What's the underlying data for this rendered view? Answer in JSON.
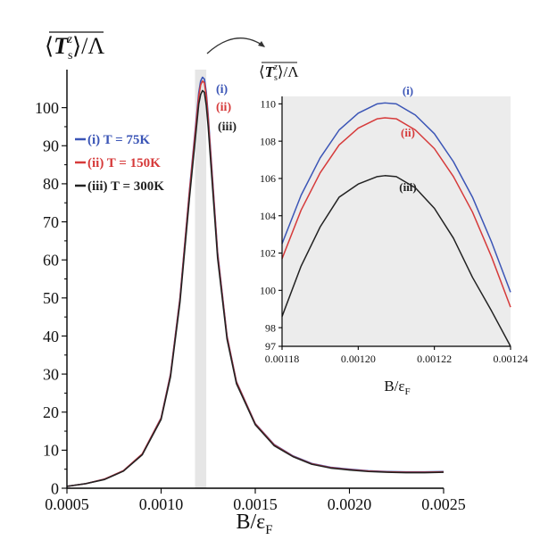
{
  "chart_data": [
    {
      "type": "line",
      "ylabel": "⟨T_s^z⟩/Λ",
      "ylabel_parts": {
        "open": "⟨",
        "T": "T",
        "sub": "s",
        "sup": "z",
        "close": "⟩",
        "tail": "/Λ"
      },
      "xlabel": "B/ε_F",
      "xlabel_parts": {
        "main": "B/ε",
        "sub": "F"
      },
      "xlim": [
        0.0005,
        0.0025
      ],
      "ylim": [
        0,
        110
      ],
      "xticks": [
        0.0005,
        0.001,
        0.0015,
        0.002,
        0.0025
      ],
      "xtick_labels": [
        "0.0005",
        "0.0010",
        "0.0015",
        "0.0020",
        "0.0025"
      ],
      "yticks": [
        0,
        10,
        20,
        30,
        40,
        50,
        60,
        70,
        80,
        90,
        100
      ],
      "ytick_labels": [
        "0",
        "10",
        "20",
        "30",
        "40",
        "50",
        "60",
        "70",
        "80",
        "90",
        "100"
      ],
      "highlight_band": [
        0.00118,
        0.00124
      ],
      "legend": {
        "placement": "upper-left"
      },
      "peak_labels": [
        "(i)",
        "(ii)",
        "(iii)"
      ],
      "series": [
        {
          "name": "(i) T = 75K",
          "color": "#3b55b6",
          "x": [
            0.0005,
            0.0006,
            0.0007,
            0.0008,
            0.0009,
            0.001,
            0.00105,
            0.0011,
            0.00115,
            0.0012,
            0.00121,
            0.00122,
            0.00123,
            0.00124,
            0.00125,
            0.0013,
            0.00135,
            0.0014,
            0.0015,
            0.0016,
            0.0017,
            0.0018,
            0.0019,
            0.002,
            0.0021,
            0.0022,
            0.0023,
            0.0024,
            0.0025
          ],
          "values": [
            0.5,
            1.2,
            2.4,
            4.6,
            9,
            18.5,
            30,
            50,
            78,
            104,
            107,
            108,
            107.5,
            104,
            98,
            62,
            40,
            28,
            17,
            11.5,
            8.5,
            6.5,
            5.5,
            5,
            4.6,
            4.4,
            4.3,
            4.3,
            4.4
          ]
        },
        {
          "name": "(ii) T = 150K",
          "color": "#d63a3a",
          "x": [
            0.0005,
            0.0006,
            0.0007,
            0.0008,
            0.0009,
            0.001,
            0.00105,
            0.0011,
            0.00115,
            0.0012,
            0.00121,
            0.00122,
            0.00123,
            0.00124,
            0.00125,
            0.0013,
            0.00135,
            0.0014,
            0.0015,
            0.0016,
            0.0017,
            0.0018,
            0.0019,
            0.002,
            0.0021,
            0.0022,
            0.0023,
            0.0024,
            0.0025
          ],
          "values": [
            0.5,
            1.2,
            2.4,
            4.6,
            9,
            18.4,
            29.8,
            49.6,
            77.5,
            103,
            106,
            107,
            106.5,
            103,
            97,
            61.5,
            39.8,
            27.9,
            16.9,
            11.4,
            8.4,
            6.4,
            5.4,
            4.9,
            4.5,
            4.3,
            4.2,
            4.2,
            4.3
          ]
        },
        {
          "name": "(iii) T = 300K",
          "color": "#222222",
          "x": [
            0.0005,
            0.0006,
            0.0007,
            0.0008,
            0.0009,
            0.001,
            0.00105,
            0.0011,
            0.00115,
            0.0012,
            0.00121,
            0.00122,
            0.00123,
            0.00124,
            0.00125,
            0.0013,
            0.00135,
            0.0014,
            0.0015,
            0.0016,
            0.0017,
            0.0018,
            0.0019,
            0.002,
            0.0021,
            0.0022,
            0.0023,
            0.0024,
            0.0025
          ],
          "values": [
            0.5,
            1.2,
            2.3,
            4.5,
            8.8,
            18.1,
            29.3,
            48.8,
            76,
            101,
            103.5,
            104.5,
            104,
            100.5,
            95,
            60.5,
            39.2,
            27.5,
            16.7,
            11.2,
            8.3,
            6.3,
            5.3,
            4.8,
            4.4,
            4.2,
            4.1,
            4.1,
            4.2
          ]
        }
      ]
    },
    {
      "type": "line",
      "ylabel": "⟨T_s^z⟩/Λ",
      "ylabel_parts": {
        "open": "⟨",
        "T": "T",
        "sub": "s",
        "sup": "z",
        "close": "⟩",
        "tail": "/Λ"
      },
      "xlabel": "B/ε_F",
      "xlabel_parts": {
        "main": "B/ε",
        "sub": "F"
      },
      "xlim": [
        0.00118,
        0.00124
      ],
      "ylim": [
        97,
        110.4
      ],
      "xticks": [
        0.00118,
        0.0012,
        0.00122,
        0.00124
      ],
      "xtick_labels": [
        "0.00118",
        "0.00120",
        "0.00122",
        "0.00124"
      ],
      "yticks": [
        97,
        98,
        100,
        102,
        104,
        106,
        108,
        110
      ],
      "ytick_labels": [
        "97",
        "98",
        "100",
        "102",
        "104",
        "106",
        "108",
        "110"
      ],
      "curve_labels": [
        "(i)",
        "(ii)",
        "(iii)"
      ],
      "series": [
        {
          "name": "(i)",
          "color": "#3b55b6",
          "x": [
            0.00118,
            0.001185,
            0.00119,
            0.001195,
            0.0012,
            0.001205,
            0.001207,
            0.00121,
            0.001215,
            0.00122,
            0.001225,
            0.00123,
            0.001235,
            0.00124
          ],
          "values": [
            102.5,
            105.1,
            107.1,
            108.6,
            109.5,
            110,
            110.05,
            110,
            109.4,
            108.4,
            106.9,
            105,
            102.6,
            99.9
          ]
        },
        {
          "name": "(ii)",
          "color": "#d63a3a",
          "x": [
            0.00118,
            0.001185,
            0.00119,
            0.001195,
            0.0012,
            0.001205,
            0.001207,
            0.00121,
            0.001215,
            0.00122,
            0.001225,
            0.00123,
            0.001235,
            0.00124
          ],
          "values": [
            101.7,
            104.3,
            106.3,
            107.8,
            108.7,
            109.2,
            109.25,
            109.2,
            108.6,
            107.6,
            106.1,
            104.2,
            101.8,
            99.1
          ]
        },
        {
          "name": "(iii)",
          "color": "#222222",
          "x": [
            0.00118,
            0.001185,
            0.00119,
            0.001195,
            0.0012,
            0.001205,
            0.001207,
            0.00121,
            0.001215,
            0.00122,
            0.001225,
            0.00123,
            0.001235,
            0.00124
          ],
          "values": [
            98.6,
            101.3,
            103.4,
            105,
            105.7,
            106.1,
            106.15,
            106.1,
            105.5,
            104.4,
            102.8,
            100.7,
            98.9,
            97
          ]
        }
      ]
    }
  ]
}
